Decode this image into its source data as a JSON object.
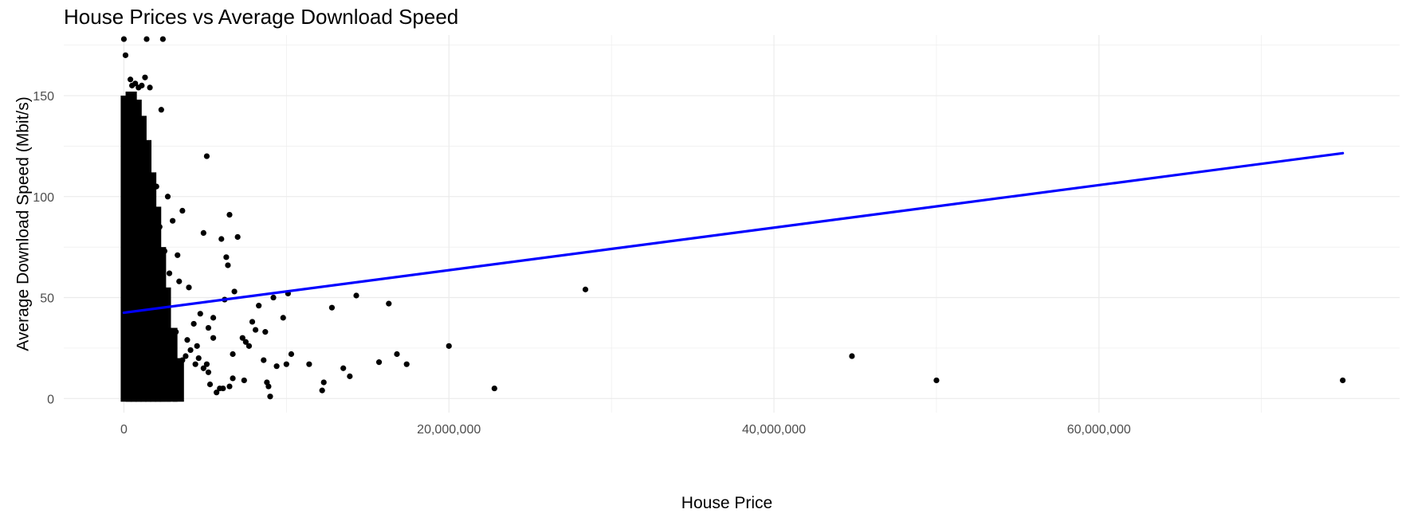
{
  "chart_data": {
    "type": "scatter",
    "title": "House Prices vs Average Download Speed",
    "xlabel": "House Price",
    "ylabel": "Average Download Speed (Mbit/s)",
    "xlim": [
      -3700000,
      78500000
    ],
    "ylim": [
      -7,
      180
    ],
    "x_ticks": [
      0,
      20000000,
      40000000,
      60000000
    ],
    "x_tick_labels": [
      "0",
      "20,000,000",
      "40,000,000",
      "60,000,000"
    ],
    "y_ticks": [
      0,
      50,
      100,
      150
    ],
    "y_tick_labels": [
      "0",
      "50",
      "100",
      "150"
    ],
    "grid": true,
    "legend": "none",
    "point_color": "#000000",
    "trend_color": "#0000ff",
    "trend_line": {
      "x": [
        0,
        75000000
      ],
      "y": [
        42.5,
        121.5
      ]
    },
    "series": [
      {
        "points": [
          [
            0,
            178
          ],
          [
            2400000,
            178
          ],
          [
            9000000,
            1
          ],
          [
            100000,
            170
          ],
          [
            1400000,
            178
          ],
          [
            400000,
            158
          ],
          [
            1300000,
            159
          ],
          [
            1600000,
            154
          ],
          [
            500000,
            155
          ],
          [
            700000,
            156
          ],
          [
            900000,
            154
          ],
          [
            1100000,
            155
          ],
          [
            300000,
            150
          ],
          [
            200000,
            145
          ],
          [
            2300000,
            143
          ],
          [
            500000,
            140
          ],
          [
            800000,
            138
          ],
          [
            5100000,
            120
          ],
          [
            600000,
            130
          ],
          [
            1000000,
            125
          ],
          [
            1500000,
            110
          ],
          [
            2000000,
            105
          ],
          [
            2700000,
            100
          ],
          [
            1800000,
            97
          ],
          [
            3600000,
            93
          ],
          [
            6500000,
            91
          ],
          [
            4900000,
            82
          ],
          [
            6000000,
            79
          ],
          [
            7000000,
            80
          ],
          [
            3000000,
            88
          ],
          [
            2200000,
            85
          ],
          [
            1200000,
            90
          ],
          [
            6300000,
            70
          ],
          [
            6400000,
            66
          ],
          [
            2500000,
            73
          ],
          [
            3300000,
            71
          ],
          [
            1700000,
            78
          ],
          [
            2800000,
            62
          ],
          [
            3400000,
            58
          ],
          [
            6800000,
            53
          ],
          [
            6200000,
            49
          ],
          [
            4000000,
            55
          ],
          [
            28400000,
            54
          ],
          [
            14300000,
            51
          ],
          [
            10100000,
            52
          ],
          [
            9200000,
            50
          ],
          [
            8300000,
            46
          ],
          [
            12800000,
            45
          ],
          [
            16300000,
            47
          ],
          [
            9800000,
            40
          ],
          [
            7900000,
            38
          ],
          [
            7300000,
            30
          ],
          [
            8100000,
            34
          ],
          [
            8700000,
            33
          ],
          [
            5500000,
            40
          ],
          [
            5200000,
            35
          ],
          [
            4700000,
            42
          ],
          [
            4300000,
            37
          ],
          [
            3900000,
            29
          ],
          [
            4500000,
            26
          ],
          [
            3200000,
            33
          ],
          [
            2600000,
            44
          ],
          [
            2100000,
            48
          ],
          [
            1900000,
            36
          ],
          [
            7700000,
            26
          ],
          [
            5500000,
            30
          ],
          [
            7500000,
            28
          ],
          [
            6700000,
            22
          ],
          [
            10300000,
            22
          ],
          [
            16800000,
            22
          ],
          [
            20000000,
            26
          ],
          [
            15700000,
            18
          ],
          [
            17400000,
            17
          ],
          [
            11400000,
            17
          ],
          [
            10000000,
            17
          ],
          [
            8600000,
            19
          ],
          [
            9400000,
            16
          ],
          [
            13500000,
            15
          ],
          [
            13900000,
            11
          ],
          [
            12300000,
            8
          ],
          [
            12200000,
            4
          ],
          [
            22800000,
            5
          ],
          [
            8800000,
            8
          ],
          [
            8900000,
            6
          ],
          [
            7400000,
            9
          ],
          [
            6700000,
            10
          ],
          [
            6500000,
            6
          ],
          [
            6100000,
            5
          ],
          [
            5900000,
            5
          ],
          [
            5700000,
            3
          ],
          [
            5300000,
            7
          ],
          [
            5200000,
            13
          ],
          [
            5100000,
            17
          ],
          [
            4900000,
            15
          ],
          [
            4600000,
            20
          ],
          [
            4400000,
            17
          ],
          [
            4100000,
            24
          ],
          [
            3800000,
            21
          ],
          [
            3600000,
            19
          ],
          [
            3400000,
            12
          ],
          [
            3100000,
            9
          ],
          [
            2900000,
            4
          ],
          [
            2700000,
            3
          ],
          [
            2500000,
            9
          ],
          [
            44800000,
            21
          ],
          [
            50000000,
            9
          ],
          [
            75000000,
            9
          ]
        ]
      }
    ]
  }
}
